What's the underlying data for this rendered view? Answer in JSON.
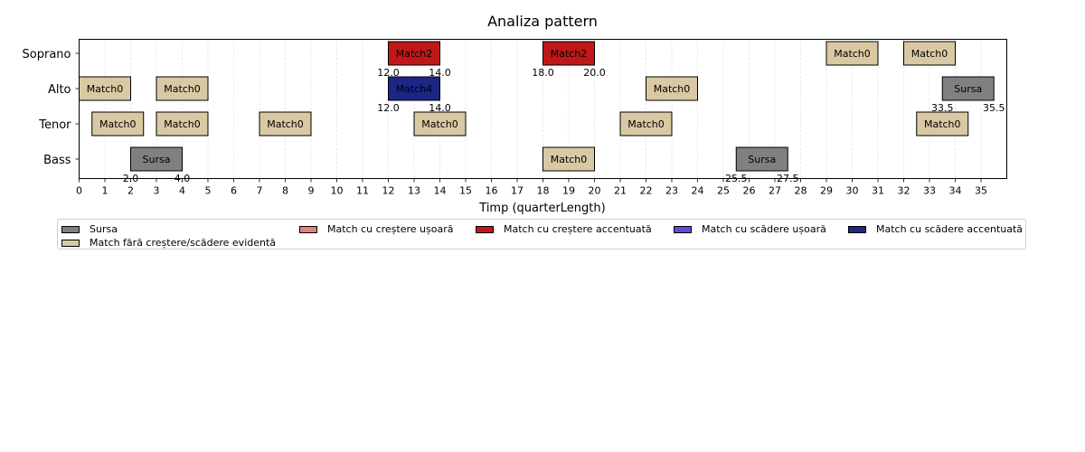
{
  "chart_data": {
    "type": "bar",
    "title": "Analiza pattern",
    "xlabel": "Timp (quarterLength)",
    "ylabel": "",
    "xlim": [
      0,
      36
    ],
    "xticks": [
      "0",
      "1",
      "2",
      "3",
      "4",
      "5",
      "6",
      "7",
      "8",
      "9",
      "10",
      "11",
      "12",
      "13",
      "14",
      "15",
      "16",
      "17",
      "18",
      "19",
      "20",
      "21",
      "22",
      "23",
      "24",
      "25",
      "26",
      "27",
      "28",
      "29",
      "30",
      "31",
      "32",
      "33",
      "34",
      "35"
    ],
    "voices": [
      "Soprano",
      "Alto",
      "Tenor",
      "Bass"
    ],
    "grid": "x",
    "legend_placement": "bottom",
    "categories": [
      {
        "name": "Sursa",
        "color": "#808080"
      },
      {
        "name": "Match fără creștere/scădere evidentă",
        "color": "#d9c9a3"
      },
      {
        "name": "Match cu creștere ușoară",
        "color": "#e48080"
      },
      {
        "name": "Match cu creștere accentuată",
        "color": "#c01818"
      },
      {
        "name": "Match cu scădere ușoară",
        "color": "#5a4ed8"
      },
      {
        "name": "Match cu scădere accentuată",
        "color": "#1c2685"
      }
    ],
    "segments": [
      {
        "voice": "Soprano",
        "start": 12,
        "end": 14,
        "label": "Match2",
        "cat": 3,
        "start_label": "12.0",
        "end_label": "14.0"
      },
      {
        "voice": "Soprano",
        "start": 18,
        "end": 20,
        "label": "Match2",
        "cat": 3,
        "start_label": "18.0",
        "end_label": "20.0"
      },
      {
        "voice": "Soprano",
        "start": 29,
        "end": 31,
        "label": "Match0",
        "cat": 1
      },
      {
        "voice": "Soprano",
        "start": 32,
        "end": 34,
        "label": "Match0",
        "cat": 1
      },
      {
        "voice": "Alto",
        "start": 0,
        "end": 2,
        "label": "Match0",
        "cat": 1
      },
      {
        "voice": "Alto",
        "start": 3,
        "end": 5,
        "label": "Match0",
        "cat": 1
      },
      {
        "voice": "Alto",
        "start": 12,
        "end": 14,
        "label": "Match4",
        "cat": 5,
        "start_label": "12.0",
        "end_label": "14.0"
      },
      {
        "voice": "Alto",
        "start": 22,
        "end": 24,
        "label": "Match0",
        "cat": 1
      },
      {
        "voice": "Alto",
        "start": 33.5,
        "end": 35.5,
        "label": "Sursa",
        "cat": 0,
        "start_label": "33.5",
        "end_label": "35.5"
      },
      {
        "voice": "Tenor",
        "start": 0.5,
        "end": 2.5,
        "label": "Match0",
        "cat": 1
      },
      {
        "voice": "Tenor",
        "start": 3,
        "end": 5,
        "label": "Match0",
        "cat": 1
      },
      {
        "voice": "Tenor",
        "start": 7,
        "end": 9,
        "label": "Match0",
        "cat": 1
      },
      {
        "voice": "Tenor",
        "start": 13,
        "end": 15,
        "label": "Match0",
        "cat": 1
      },
      {
        "voice": "Tenor",
        "start": 21,
        "end": 23,
        "label": "Match0",
        "cat": 1
      },
      {
        "voice": "Tenor",
        "start": 32.5,
        "end": 34.5,
        "label": "Match0",
        "cat": 1
      },
      {
        "voice": "Bass",
        "start": 2,
        "end": 4,
        "label": "Sursa",
        "cat": 0,
        "start_label": "2.0",
        "end_label": "4.0"
      },
      {
        "voice": "Bass",
        "start": 18,
        "end": 20,
        "label": "Match0",
        "cat": 1
      },
      {
        "voice": "Bass",
        "start": 25.5,
        "end": 27.5,
        "label": "Sursa",
        "cat": 0,
        "start_label": "25.5",
        "end_label": "27.5"
      }
    ]
  }
}
